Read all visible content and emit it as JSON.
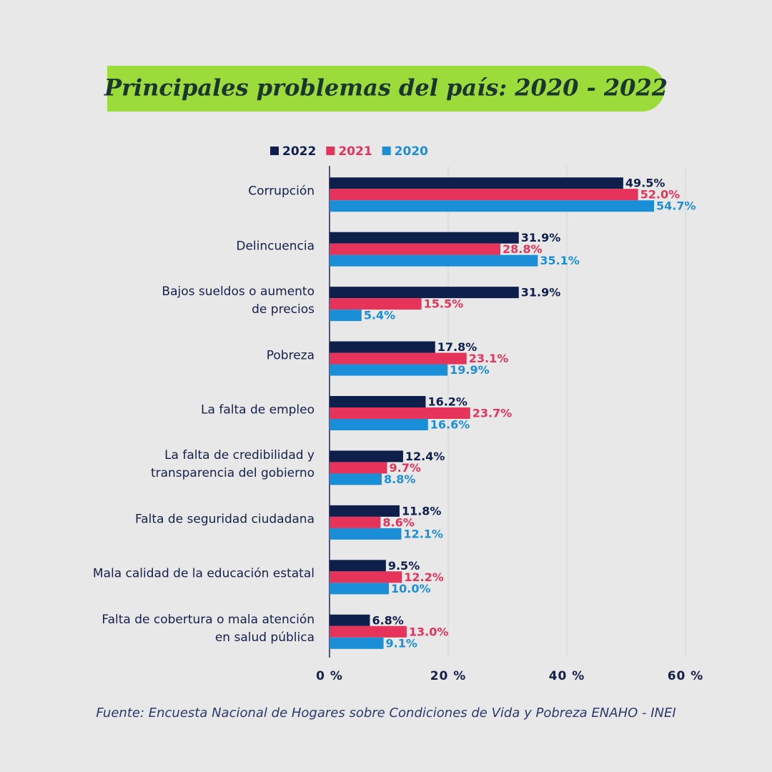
{
  "chart_data": {
    "type": "bar",
    "orientation": "horizontal",
    "title": "Principales problemas del país: 2020 - 2022",
    "categories": [
      "Corrupción",
      "Delincuencia",
      "Bajos sueldos o aumento\nde precios",
      "Pobreza",
      "La falta de empleo",
      "La falta de credibilidad y\ntransparencia del gobierno",
      "Falta de seguridad ciudadana",
      "Mala calidad de la educación estatal",
      "Falta de cobertura o mala atención\nen salud pública"
    ],
    "series": [
      {
        "name": "2022",
        "color": "#0f1f4b",
        "values": [
          49.5,
          31.9,
          31.9,
          17.8,
          16.2,
          12.4,
          11.8,
          9.5,
          6.8
        ],
        "value_labels": [
          "49.5%",
          "31.9%",
          "31.9%",
          "17.8%",
          "16.2%",
          "12.4%",
          "11.8%",
          "9.5%",
          "6.8%"
        ]
      },
      {
        "name": "2021",
        "color": "#e6335a",
        "values": [
          52.0,
          28.8,
          15.5,
          23.1,
          23.7,
          9.7,
          8.6,
          12.2,
          13.0
        ],
        "value_labels": [
          "52.0%",
          "28.8%",
          "15.5%",
          "23.1%",
          "23.7%",
          "9.7%",
          "8.6%",
          "12.2%",
          "13.0%"
        ]
      },
      {
        "name": "2020",
        "color": "#1a8fd8",
        "values": [
          54.7,
          35.1,
          5.4,
          19.9,
          16.6,
          8.8,
          12.1,
          10.0,
          9.1
        ],
        "value_labels": [
          "54.7%",
          "35.1%",
          "5.4%",
          "19.9%",
          "16.6%",
          "8.8%",
          "12.1%",
          "10.0%",
          "9.1%"
        ]
      }
    ],
    "xlim": [
      0,
      60
    ],
    "xticks": [
      {
        "value": 0,
        "label": "0 %"
      },
      {
        "value": 20,
        "label": "20 %"
      },
      {
        "value": 40,
        "label": "40 %"
      },
      {
        "value": 60,
        "label": "60 %"
      }
    ],
    "grid": true,
    "source": "Fuente: Encuesta Nacional de Hogares sobre Condiciones de Vida y Pobreza ENAHO - INEI"
  }
}
